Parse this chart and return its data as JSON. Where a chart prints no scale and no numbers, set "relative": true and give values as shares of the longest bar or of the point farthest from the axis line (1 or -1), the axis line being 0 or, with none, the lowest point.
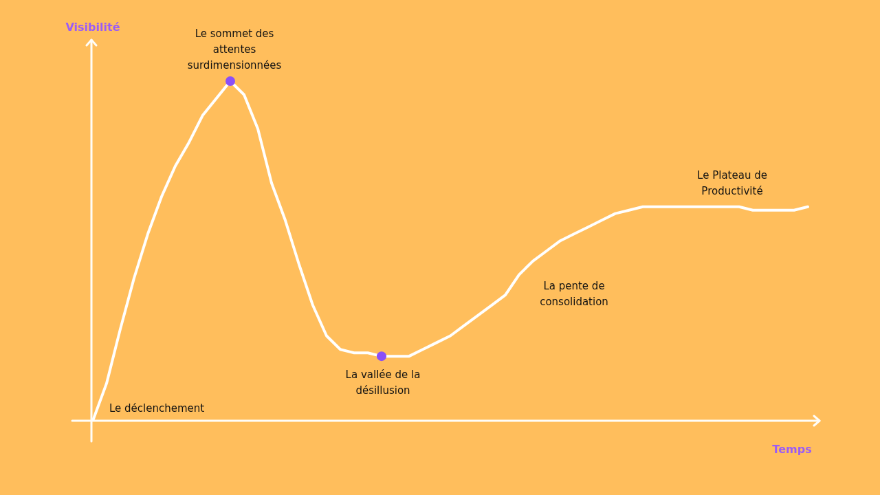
{
  "chart_data": {
    "type": "line",
    "relative": true,
    "xlabel": "Temps",
    "ylabel": "Visibilité",
    "categories": [
      null,
      null,
      null,
      null,
      null,
      null,
      null,
      null,
      null,
      null,
      null,
      null,
      null,
      null,
      null,
      null,
      null,
      null,
      null,
      null,
      null,
      null,
      null,
      null,
      null,
      null,
      null,
      null,
      null,
      null,
      null,
      null,
      null,
      null,
      null,
      null,
      null,
      null,
      null,
      null,
      null,
      null,
      null,
      null,
      null,
      null,
      null,
      null,
      null,
      null,
      null,
      null,
      null
    ],
    "series": [
      {
        "type": "line",
        "color": "#ffffff",
        "marker": "none",
        "values": [
          0,
          0.11,
          0.27,
          0.42,
          0.55,
          0.66,
          0.75,
          0.82,
          0.9,
          0.95,
          1,
          0.96,
          0.86,
          0.7,
          0.59,
          0.46,
          0.34,
          0.25,
          0.21,
          0.2,
          0.2,
          0.19,
          0.19,
          0.19,
          0.21,
          0.23,
          0.25,
          0.28,
          0.31,
          0.34,
          0.37,
          0.43,
          0.47,
          0.5,
          0.53,
          0.55,
          0.57,
          0.59,
          0.61,
          0.62,
          0.63,
          0.63,
          0.63,
          0.63,
          0.63,
          0.63,
          0.63,
          0.63,
          0.62,
          0.62,
          0.62,
          0.62,
          0.63
        ]
      }
    ],
    "annotations": [
      {
        "text": "Le sommet des attentes surdimensionnées",
        "y": 1
      },
      {
        "text": "La vallée de la désillusion",
        "y": 0.19
      },
      "La pente de consolidation",
      "Le Plateau de Productivité",
      "Le déclenchement"
    ]
  }
}
